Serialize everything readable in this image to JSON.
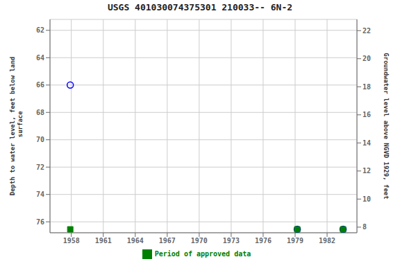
{
  "chart_data": {
    "type": "scatter",
    "title": "USGS 401030074375301 210033-- 6N-2",
    "ylabel": "Depth to water level, feet below land\n surface",
    "y2label": "Groundwater level above NGVD 1929, feet",
    "xlim": [
      1956.0,
      1984.8
    ],
    "xticks": [
      1958,
      1961,
      1964,
      1967,
      1970,
      1973,
      1976,
      1979,
      1982
    ],
    "ylim": [
      76.8,
      61.2
    ],
    "yticks": [
      62,
      64,
      66,
      68,
      70,
      72,
      74,
      76
    ],
    "y2lim": [
      7.6,
      22.8
    ],
    "y2ticks": [
      8,
      10,
      12,
      14,
      16,
      18,
      20,
      22
    ],
    "grid": true,
    "legend": "bottom",
    "series": [
      {
        "color": "#0000ff",
        "marker": "open_circle",
        "x": [
          1957.9,
          1979.2,
          1983.5
        ],
        "values": [
          66.0,
          76.55,
          76.55
        ]
      },
      {
        "name": "Period of approved data",
        "color": "#008000",
        "marker": "square",
        "x": [
          1957.9,
          1979.2,
          1983.5
        ],
        "values": [
          76.55,
          76.55,
          76.55
        ]
      }
    ]
  }
}
